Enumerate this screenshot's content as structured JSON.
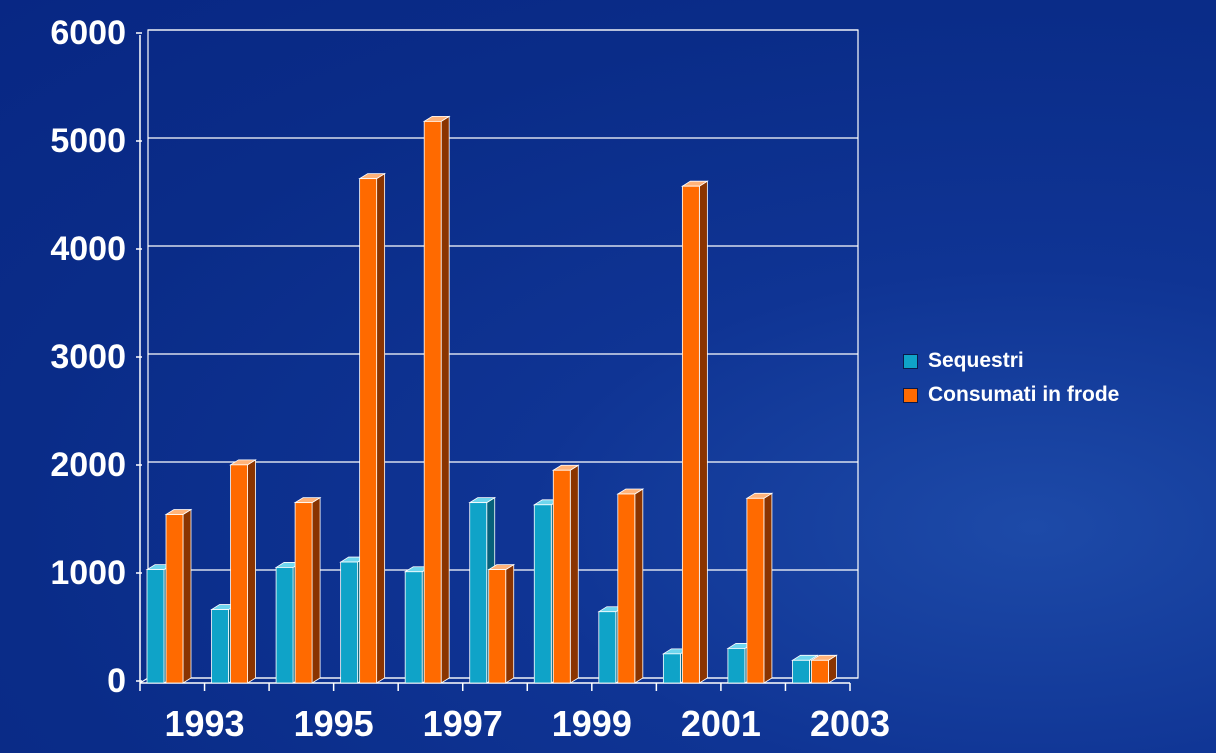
{
  "chart_data": {
    "type": "bar",
    "x": [
      1993,
      1994,
      1995,
      1996,
      1997,
      1998,
      1999,
      2000,
      2001,
      2002,
      2003
    ],
    "xtick_labels": [
      "1993",
      "1995",
      "1997",
      "1999",
      "2001",
      "2003"
    ],
    "ylim": [
      0,
      6000
    ],
    "yticks": [
      "0",
      "1000",
      "2000",
      "3000",
      "4000",
      "5000",
      "6000"
    ],
    "series": [
      {
        "name": "Sequestri",
        "color": "#0fa3c8",
        "values": [
          1050,
          680,
          1070,
          1120,
          1030,
          1670,
          1650,
          660,
          270,
          320,
          210
        ]
      },
      {
        "name": "Consumati in frode",
        "color": "#ff6a00",
        "values": [
          1560,
          2020,
          1670,
          4670,
          5200,
          1050,
          1970,
          1750,
          4600,
          1710,
          210
        ]
      }
    ],
    "grid": true,
    "legend_position": "right"
  }
}
